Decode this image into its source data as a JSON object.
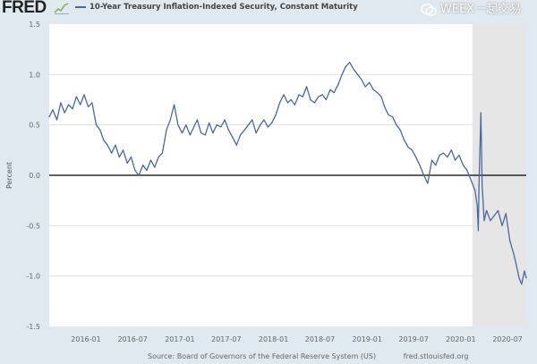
{
  "header": {
    "logo": "FRED",
    "legend_label": "10-Year Treasury Inflation-Indexed Security, Constant Maturity"
  },
  "footer": {
    "source": "Source: Board of Governors of the Federal Reserve System (US)",
    "site": "fred.stlouisfed.org"
  },
  "watermark": "WEEX一起交易",
  "colors": {
    "line": "#4a6a9e",
    "recession": "#e6e6e6",
    "background": "#e1e9f0",
    "zero_line": "#000000"
  },
  "chart_data": {
    "type": "line",
    "title": "10-Year Treasury Inflation-Indexed Security, Constant Maturity",
    "xlabel": "",
    "ylabel": "Percent",
    "ylim": [
      -1.5,
      1.5
    ],
    "xlim": [
      "2015-08-11",
      "2020-09-12"
    ],
    "yticks": [
      "1.5",
      "1.0",
      "0.5",
      "0.0",
      "-0.5",
      "-1.0",
      "-1.5"
    ],
    "xticks": [
      "2016-01",
      "2016-07",
      "2017-01",
      "2017-07",
      "2018-01",
      "2018-07",
      "2019-01",
      "2019-07",
      "2020-01",
      "2020-07"
    ],
    "grid": true,
    "reference_line": 0,
    "shaded_period": [
      "2020-02-15",
      "2020-09-12"
    ],
    "series": [
      {
        "x": [
          "2015-08-11",
          "2015-08-25",
          "2015-09-10",
          "2015-09-25",
          "2015-10-10",
          "2015-10-25",
          "2015-11-10",
          "2015-11-25",
          "2015-12-10",
          "2015-12-25",
          "2016-01-10",
          "2016-01-25",
          "2016-02-10",
          "2016-02-25",
          "2016-03-10",
          "2016-03-25",
          "2016-04-10",
          "2016-04-25",
          "2016-05-10",
          "2016-05-25",
          "2016-06-10",
          "2016-06-25",
          "2016-07-10",
          "2016-07-25",
          "2016-08-10",
          "2016-08-25",
          "2016-09-10",
          "2016-09-25",
          "2016-10-10",
          "2016-10-25",
          "2016-11-10",
          "2016-11-25",
          "2016-12-10",
          "2016-12-25",
          "2017-01-10",
          "2017-01-25",
          "2017-02-10",
          "2017-02-25",
          "2017-03-10",
          "2017-03-25",
          "2017-04-10",
          "2017-04-25",
          "2017-05-10",
          "2017-05-25",
          "2017-06-10",
          "2017-06-25",
          "2017-07-10",
          "2017-07-25",
          "2017-08-10",
          "2017-08-25",
          "2017-09-10",
          "2017-09-25",
          "2017-10-10",
          "2017-10-25",
          "2017-11-10",
          "2017-11-25",
          "2017-12-10",
          "2017-12-25",
          "2018-01-10",
          "2018-01-25",
          "2018-02-10",
          "2018-02-25",
          "2018-03-10",
          "2018-03-25",
          "2018-04-10",
          "2018-04-25",
          "2018-05-10",
          "2018-05-25",
          "2018-06-10",
          "2018-06-25",
          "2018-07-10",
          "2018-07-25",
          "2018-08-10",
          "2018-08-25",
          "2018-09-10",
          "2018-09-25",
          "2018-10-10",
          "2018-10-25",
          "2018-11-10",
          "2018-11-25",
          "2018-12-10",
          "2018-12-25",
          "2019-01-10",
          "2019-01-25",
          "2019-02-10",
          "2019-02-25",
          "2019-03-10",
          "2019-03-25",
          "2019-04-10",
          "2019-04-25",
          "2019-05-10",
          "2019-05-25",
          "2019-06-10",
          "2019-06-25",
          "2019-07-10",
          "2019-07-25",
          "2019-08-10",
          "2019-08-25",
          "2019-09-10",
          "2019-09-25",
          "2019-10-10",
          "2019-10-25",
          "2019-11-10",
          "2019-11-25",
          "2019-12-10",
          "2019-12-25",
          "2020-01-10",
          "2020-01-25",
          "2020-02-10",
          "2020-02-25",
          "2020-03-05",
          "2020-03-09",
          "2020-03-12",
          "2020-03-19",
          "2020-03-24",
          "2020-04-01",
          "2020-04-10",
          "2020-04-25",
          "2020-05-10",
          "2020-05-25",
          "2020-06-10",
          "2020-06-25",
          "2020-07-10",
          "2020-07-25",
          "2020-08-05",
          "2020-08-15",
          "2020-08-25",
          "2020-09-05",
          "2020-09-12"
        ],
        "values": [
          0.58,
          0.65,
          0.55,
          0.72,
          0.62,
          0.7,
          0.66,
          0.78,
          0.7,
          0.8,
          0.68,
          0.72,
          0.5,
          0.45,
          0.35,
          0.3,
          0.22,
          0.3,
          0.18,
          0.25,
          0.12,
          0.18,
          0.05,
          0.0,
          0.1,
          0.05,
          0.15,
          0.08,
          0.18,
          0.22,
          0.45,
          0.55,
          0.7,
          0.5,
          0.42,
          0.5,
          0.4,
          0.48,
          0.55,
          0.42,
          0.4,
          0.52,
          0.42,
          0.5,
          0.48,
          0.55,
          0.45,
          0.38,
          0.3,
          0.4,
          0.45,
          0.5,
          0.55,
          0.42,
          0.5,
          0.55,
          0.48,
          0.52,
          0.6,
          0.72,
          0.8,
          0.72,
          0.75,
          0.7,
          0.8,
          0.78,
          0.88,
          0.75,
          0.72,
          0.78,
          0.8,
          0.75,
          0.85,
          0.82,
          0.9,
          1.0,
          1.08,
          1.12,
          1.05,
          1.0,
          0.95,
          0.88,
          0.92,
          0.85,
          0.82,
          0.78,
          0.68,
          0.6,
          0.58,
          0.5,
          0.45,
          0.35,
          0.28,
          0.25,
          0.18,
          0.1,
          0.0,
          -0.08,
          0.15,
          0.1,
          0.2,
          0.22,
          0.18,
          0.25,
          0.15,
          0.2,
          0.1,
          0.05,
          -0.05,
          -0.15,
          -0.3,
          -0.55,
          -0.1,
          0.62,
          -0.1,
          -0.45,
          -0.35,
          -0.45,
          -0.4,
          -0.35,
          -0.5,
          -0.38,
          -0.65,
          -0.78,
          -0.9,
          -1.02,
          -1.08,
          -0.95,
          -1.02
        ]
      }
    ]
  }
}
